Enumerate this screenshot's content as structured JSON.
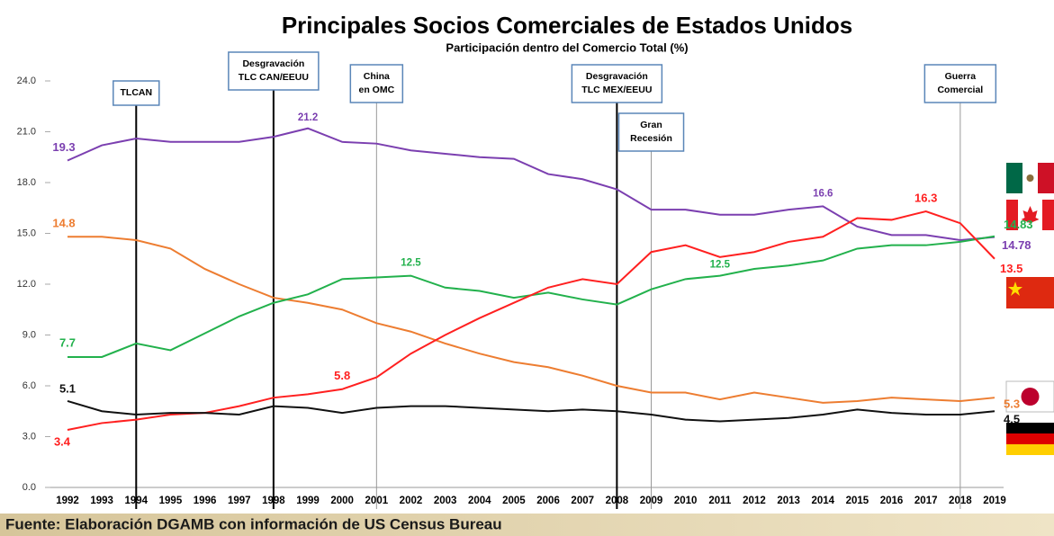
{
  "chart_data": {
    "type": "line",
    "title": "Principales Socios Comerciales de Estados Unidos",
    "subtitle": "Participación dentro del Comercio Total (%)",
    "categories": [
      "1992",
      "1993",
      "1994",
      "1995",
      "1996",
      "1997",
      "1998",
      "1999",
      "2000",
      "2001",
      "2002",
      "2003",
      "2004",
      "2005",
      "2006",
      "2007",
      "2008",
      "2009",
      "2010",
      "2011",
      "2012",
      "2013",
      "2014",
      "2015",
      "2016",
      "2017",
      "2018",
      "2019"
    ],
    "ylim": [
      0,
      24
    ],
    "yticks": [
      {
        "value": 0,
        "label": "0.0"
      },
      {
        "value": 3,
        "label": "3.0"
      },
      {
        "value": 6,
        "label": "6.0"
      },
      {
        "value": 9,
        "label": "9.0"
      },
      {
        "value": 12,
        "label": "12.0"
      },
      {
        "value": 15,
        "label": "15.0"
      },
      {
        "value": 18,
        "label": "18.0"
      },
      {
        "value": 21,
        "label": "21.0"
      },
      {
        "value": 24,
        "label": "24.0"
      }
    ],
    "series": [
      {
        "color": "#7b3fb0",
        "values": [
          19.3,
          20.2,
          20.6,
          20.4,
          20.4,
          20.4,
          20.7,
          21.2,
          20.4,
          20.3,
          19.9,
          19.7,
          19.5,
          19.4,
          18.5,
          18.2,
          17.6,
          16.4,
          16.4,
          16.1,
          16.1,
          16.4,
          16.6,
          15.4,
          14.9,
          14.9,
          14.6,
          14.78
        ],
        "value_labels": [
          "19.3",
          null,
          null,
          null,
          null,
          null,
          null,
          "21.2",
          null,
          null,
          null,
          null,
          null,
          null,
          null,
          null,
          null,
          null,
          null,
          null,
          null,
          null,
          "16.6",
          null,
          null,
          null,
          null,
          "14.78"
        ]
      },
      {
        "color": "#ed7d31",
        "values": [
          14.8,
          14.8,
          14.6,
          14.1,
          12.9,
          12.0,
          11.2,
          10.9,
          10.5,
          9.7,
          9.2,
          8.5,
          7.9,
          7.4,
          7.1,
          6.6,
          6.0,
          5.6,
          5.6,
          5.2,
          5.6,
          5.3,
          5.0,
          5.1,
          5.3,
          5.2,
          5.1,
          5.3
        ],
        "value_labels": [
          "14.8",
          null,
          null,
          null,
          null,
          null,
          null,
          null,
          null,
          null,
          null,
          null,
          null,
          null,
          null,
          null,
          null,
          null,
          null,
          null,
          null,
          null,
          null,
          null,
          null,
          null,
          null,
          "5.3"
        ]
      },
      {
        "color": "#22b14c",
        "values": [
          7.7,
          7.7,
          8.5,
          8.1,
          9.1,
          10.1,
          10.9,
          11.4,
          12.3,
          12.4,
          12.5,
          11.8,
          11.6,
          11.2,
          11.5,
          11.1,
          10.8,
          11.7,
          12.3,
          12.5,
          12.9,
          13.1,
          13.4,
          14.1,
          14.3,
          14.3,
          14.5,
          14.83
        ],
        "value_labels": [
          "7.7",
          null,
          null,
          null,
          null,
          null,
          null,
          null,
          null,
          null,
          "12.5",
          null,
          null,
          null,
          null,
          null,
          null,
          null,
          null,
          "12.5",
          null,
          null,
          null,
          null,
          null,
          null,
          null,
          "14.83"
        ]
      },
      {
        "color": "#ff2020",
        "values": [
          3.4,
          3.8,
          4.0,
          4.3,
          4.4,
          4.8,
          5.3,
          5.5,
          5.8,
          6.5,
          7.9,
          9.0,
          10.0,
          10.9,
          11.8,
          12.3,
          12.0,
          13.9,
          14.3,
          13.6,
          13.9,
          14.5,
          14.8,
          15.9,
          15.8,
          16.3,
          15.6,
          13.5
        ],
        "value_labels": [
          "3.4",
          null,
          null,
          null,
          null,
          null,
          null,
          null,
          "5.8",
          null,
          null,
          null,
          null,
          null,
          null,
          null,
          null,
          null,
          null,
          null,
          null,
          null,
          null,
          null,
          null,
          "16.3",
          null,
          "13.5"
        ]
      },
      {
        "color": "#111111",
        "values": [
          5.1,
          4.5,
          4.3,
          4.4,
          4.4,
          4.3,
          4.8,
          4.7,
          4.4,
          4.7,
          4.8,
          4.8,
          4.7,
          4.6,
          4.5,
          4.6,
          4.5,
          4.3,
          4.0,
          3.9,
          4.0,
          4.1,
          4.3,
          4.6,
          4.4,
          4.3,
          4.3,
          4.5
        ],
        "value_labels": [
          "5.1",
          null,
          null,
          null,
          null,
          null,
          null,
          null,
          null,
          null,
          null,
          null,
          null,
          null,
          null,
          null,
          null,
          null,
          null,
          null,
          null,
          null,
          null,
          null,
          null,
          null,
          null,
          "4.5"
        ]
      }
    ],
    "events": [
      {
        "x": "1994",
        "lines": [
          "TLCAN"
        ]
      },
      {
        "x": "1998",
        "lines": [
          "Desgravación",
          "TLC CAN/EEUU"
        ]
      },
      {
        "x": "2001",
        "lines": [
          "China",
          "en OMC"
        ]
      },
      {
        "x": "2008",
        "lines": [
          "Desgravación",
          "TLC MEX/EEUU"
        ]
      },
      {
        "x": "2009",
        "lines": [
          "Gran",
          "Recesión"
        ]
      },
      {
        "x": "2018",
        "lines": [
          "Guerra",
          "Comercial"
        ]
      }
    ],
    "source": "Fuente: Elaboración DGAMB con información de US Census Bureau"
  }
}
